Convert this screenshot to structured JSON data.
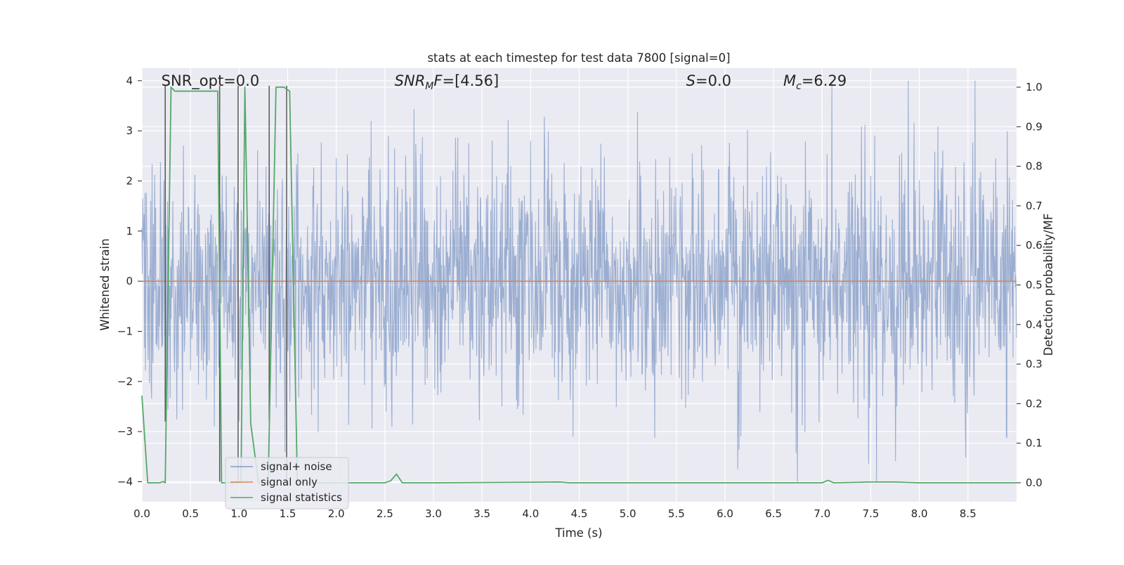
{
  "chart_data": {
    "type": "line",
    "title": "stats at each timestep for test data 7800 [signal=0]",
    "xlabel": "Time (s)",
    "ylabel": "Whitened strain",
    "y2label": "Detection probability/MF",
    "xlim": [
      0,
      9
    ],
    "ylim": [
      -4.4,
      4.25
    ],
    "y2lim": [
      -0.048,
      1.048
    ],
    "xticks": [
      "0.0",
      "0.5",
      "1.0",
      "1.5",
      "2.0",
      "2.5",
      "3.0",
      "3.5",
      "4.0",
      "4.5",
      "5.0",
      "5.5",
      "6.0",
      "6.5",
      "7.0",
      "7.5",
      "8.0",
      "8.5"
    ],
    "yticks": [
      "−4",
      "−3",
      "−2",
      "−1",
      "0",
      "1",
      "2",
      "3",
      "4"
    ],
    "y2ticks": [
      "0.0",
      "0.1",
      "0.2",
      "0.3",
      "0.4",
      "0.5",
      "0.6",
      "0.7",
      "0.8",
      "0.9",
      "1.0"
    ],
    "grid": true,
    "legend_position": "lower-left",
    "annotations": [
      {
        "segments": [
          {
            "text": "SNR_opt=0.0"
          }
        ],
        "x": 0.2,
        "y": 3.9
      },
      {
        "segments": [
          {
            "text": "SNR",
            "italic": true
          },
          {
            "text": "M",
            "italic": true,
            "sub": true
          },
          {
            "text": "F",
            "italic": true
          },
          {
            "text": "=[4.56]"
          }
        ],
        "x": 2.6,
        "y": 3.9
      },
      {
        "segments": [
          {
            "text": "S",
            "italic": true
          },
          {
            "text": "=0.0"
          }
        ],
        "x": 5.6,
        "y": 3.9
      },
      {
        "segments": [
          {
            "text": "M",
            "italic": true
          },
          {
            "text": "c",
            "italic": true,
            "sub": true
          },
          {
            "text": "=6.29"
          }
        ],
        "x": 6.6,
        "y": 3.9
      }
    ],
    "vertical_markers": [
      {
        "x": 0.24,
        "ymin": -2.8,
        "ymax": 3.9
      },
      {
        "x": 0.8,
        "ymin": -4.0,
        "ymax": 3.9
      },
      {
        "x": 0.99,
        "ymin": -4.0,
        "ymax": 3.9
      },
      {
        "x": 1.31,
        "ymin": -2.8,
        "ymax": 3.9
      },
      {
        "x": 1.49,
        "ymin": -4.0,
        "ymax": 3.9
      }
    ],
    "series": [
      {
        "name": "signal+ noise",
        "color": "#4c72b0",
        "axis": "left",
        "kind": "whitened-noise",
        "samples_per_second": 220,
        "envelope": [
          -2.5,
          2.6
        ],
        "max_abs": 4.0
      },
      {
        "name": "signal only",
        "color": "#dd8452",
        "axis": "left",
        "x": [
          0,
          9
        ],
        "y": [
          0,
          0
        ]
      },
      {
        "name": "signal statistics",
        "color": "#55a868",
        "axis": "right",
        "x": [
          0.0,
          0.06,
          0.18,
          0.22,
          0.24,
          0.3,
          0.34,
          0.4,
          0.6,
          0.78,
          0.82,
          0.9,
          0.95,
          1.02,
          1.06,
          1.12,
          1.2,
          1.3,
          1.38,
          1.46,
          1.52,
          1.6,
          1.7,
          2.0,
          2.5,
          2.56,
          2.62,
          2.68,
          3.0,
          4.3,
          4.4,
          7.0,
          7.06,
          7.12,
          7.5,
          7.75,
          8.0,
          9.0
        ],
        "y": [
          0.22,
          0.0,
          0.0,
          0.003,
          0.0,
          1.0,
          0.99,
          0.99,
          0.99,
          0.99,
          0.0,
          0.0,
          0.0,
          0.0,
          1.0,
          0.15,
          0.0,
          0.0,
          1.0,
          1.0,
          0.99,
          0.0,
          0.0,
          0.0,
          0.0,
          0.005,
          0.022,
          0.0,
          0.0,
          0.002,
          0.0,
          0.0,
          0.006,
          0.0,
          0.002,
          0.002,
          0.0,
          0.0
        ]
      }
    ]
  }
}
